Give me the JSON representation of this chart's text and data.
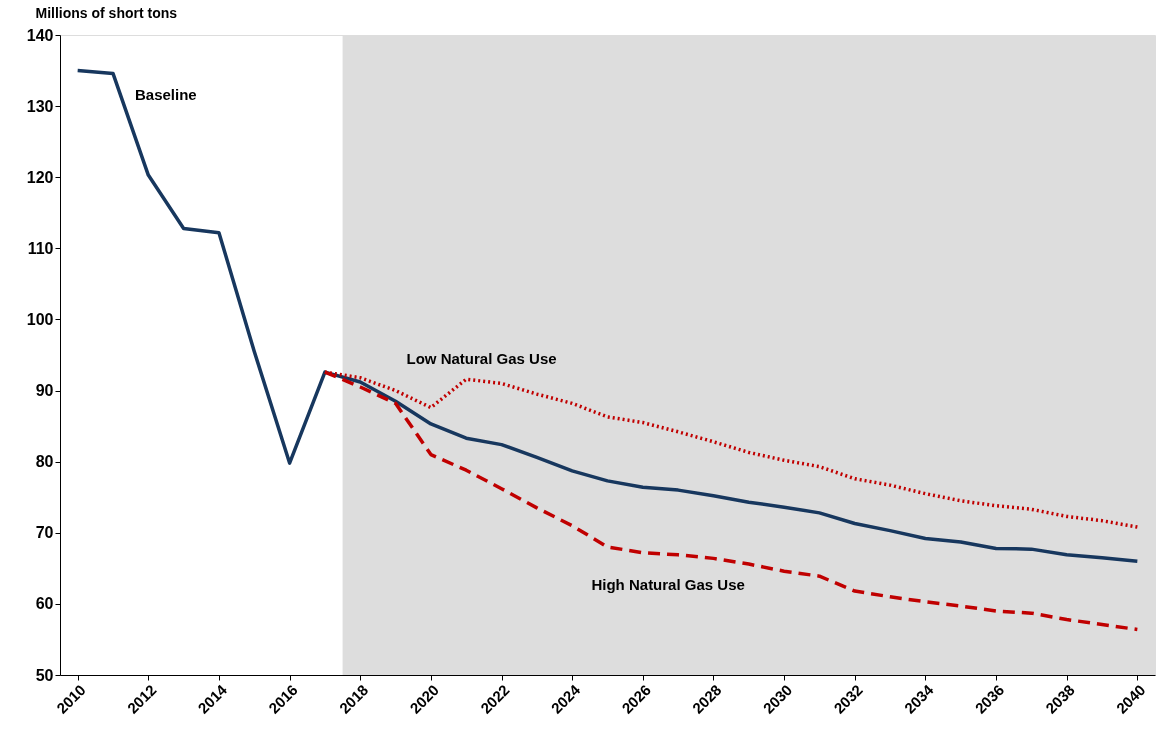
{
  "chart_data": {
    "type": "line",
    "ylabel": "Millions of short tons",
    "x": [
      2010,
      2011,
      2012,
      2013,
      2014,
      2015,
      2016,
      2017,
      2018,
      2019,
      2020,
      2021,
      2022,
      2023,
      2024,
      2025,
      2026,
      2027,
      2028,
      2029,
      2030,
      2031,
      2032,
      2033,
      2034,
      2035,
      2036,
      2037,
      2038,
      2039,
      2040
    ],
    "series": [
      {
        "name": "Baseline",
        "color": "#17375e",
        "line_style": "solid",
        "values": [
          135.0,
          134.6,
          120.3,
          112.8,
          112.2,
          95.5,
          79.8,
          92.6,
          91.2,
          88.5,
          85.3,
          83.3,
          82.4,
          80.6,
          78.7,
          77.3,
          76.4,
          76.0,
          75.2,
          74.3,
          73.6,
          72.8,
          71.3,
          70.3,
          69.2,
          68.7,
          67.8,
          67.7,
          66.9,
          66.5,
          66.0
        ]
      },
      {
        "name": "Low Natural Gas Use",
        "color": "#c00000",
        "line_style": "dotted",
        "values": [
          null,
          null,
          null,
          null,
          null,
          null,
          null,
          92.6,
          91.8,
          90.0,
          87.6,
          91.6,
          91.0,
          89.5,
          88.2,
          86.3,
          85.5,
          84.2,
          82.8,
          81.3,
          80.2,
          79.3,
          77.6,
          76.7,
          75.5,
          74.5,
          73.8,
          73.3,
          72.3,
          71.7,
          70.8
        ]
      },
      {
        "name": "High Natural Gas Use",
        "color": "#c00000",
        "line_style": "dashed",
        "values": [
          null,
          null,
          null,
          null,
          null,
          null,
          null,
          92.6,
          90.5,
          88.2,
          81.0,
          78.8,
          76.2,
          73.5,
          71.0,
          68.0,
          67.2,
          66.9,
          66.4,
          65.6,
          64.6,
          63.9,
          61.8,
          61.0,
          60.3,
          59.7,
          59.0,
          58.7,
          57.8,
          57.1,
          56.4
        ]
      }
    ],
    "xlim": [
      2009.5,
      2040.5
    ],
    "xticks": [
      2010,
      2012,
      2014,
      2016,
      2018,
      2020,
      2022,
      2024,
      2026,
      2028,
      2030,
      2032,
      2034,
      2036,
      2038,
      2040
    ],
    "ylim": [
      50,
      140
    ],
    "yticks": [
      50,
      60,
      70,
      80,
      90,
      100,
      110,
      120,
      130,
      140
    ],
    "bands": [
      {
        "axis": "x",
        "from": 2017.5,
        "to": 2040.5,
        "color": "#dddddd"
      }
    ],
    "grid": false,
    "marker": "none"
  }
}
